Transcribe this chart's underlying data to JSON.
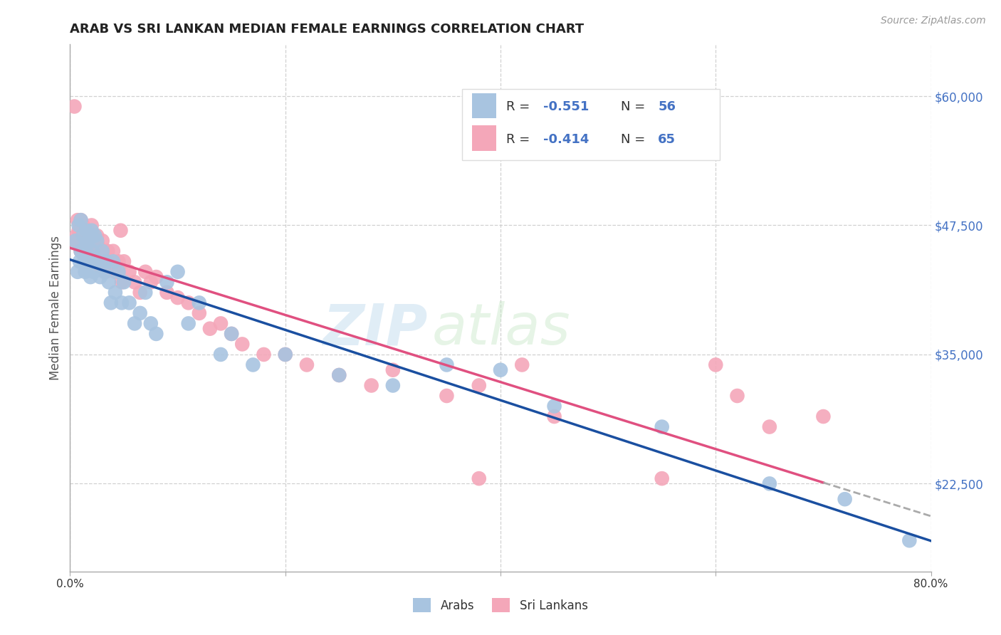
{
  "title": "ARAB VS SRI LANKAN MEDIAN FEMALE EARNINGS CORRELATION CHART",
  "source": "Source: ZipAtlas.com",
  "ylabel": "Median Female Earnings",
  "ytick_labels": [
    "$22,500",
    "$35,000",
    "$47,500",
    "$60,000"
  ],
  "ytick_values": [
    22500,
    35000,
    47500,
    60000
  ],
  "ymin": 14000,
  "ymax": 65000,
  "xmin": 0.0,
  "xmax": 0.8,
  "arab_color": "#a8c4e0",
  "srilankan_color": "#f4a7b9",
  "arab_line_color": "#1a4fa0",
  "srilankan_line_color": "#e05080",
  "watermark_zip": "ZIP",
  "watermark_atlas": "atlas",
  "background_color": "#ffffff",
  "grid_color": "#cccccc",
  "arab_R": -0.551,
  "arab_N": 56,
  "srilankan_R": -0.414,
  "srilankan_N": 65,
  "arab_points_x": [
    0.005,
    0.007,
    0.008,
    0.009,
    0.01,
    0.01,
    0.012,
    0.013,
    0.014,
    0.015,
    0.015,
    0.016,
    0.017,
    0.018,
    0.019,
    0.02,
    0.021,
    0.022,
    0.023,
    0.024,
    0.025,
    0.026,
    0.028,
    0.03,
    0.032,
    0.034,
    0.036,
    0.038,
    0.04,
    0.042,
    0.045,
    0.048,
    0.05,
    0.055,
    0.06,
    0.065,
    0.07,
    0.075,
    0.08,
    0.09,
    0.1,
    0.11,
    0.12,
    0.14,
    0.15,
    0.17,
    0.2,
    0.25,
    0.3,
    0.35,
    0.4,
    0.45,
    0.55,
    0.65,
    0.72,
    0.78
  ],
  "arab_points_y": [
    46000,
    43000,
    47500,
    44000,
    48000,
    45000,
    46500,
    44000,
    43000,
    47000,
    45500,
    43500,
    46000,
    44500,
    42500,
    47000,
    45000,
    43000,
    46500,
    44000,
    46000,
    44000,
    42500,
    45000,
    43000,
    44000,
    42000,
    40000,
    44000,
    41000,
    43000,
    40000,
    42000,
    40000,
    38000,
    39000,
    41000,
    38000,
    37000,
    42000,
    43000,
    38000,
    40000,
    35000,
    37000,
    34000,
    35000,
    33000,
    32000,
    34000,
    33500,
    30000,
    28000,
    22500,
    21000,
    17000
  ],
  "sri_points_x": [
    0.004,
    0.006,
    0.008,
    0.009,
    0.01,
    0.01,
    0.012,
    0.013,
    0.014,
    0.015,
    0.015,
    0.016,
    0.018,
    0.019,
    0.02,
    0.021,
    0.022,
    0.023,
    0.025,
    0.026,
    0.027,
    0.028,
    0.03,
    0.031,
    0.033,
    0.035,
    0.037,
    0.04,
    0.042,
    0.045,
    0.048,
    0.05,
    0.055,
    0.06,
    0.065,
    0.07,
    0.075,
    0.08,
    0.09,
    0.1,
    0.11,
    0.12,
    0.13,
    0.14,
    0.15,
    0.16,
    0.18,
    0.2,
    0.22,
    0.25,
    0.28,
    0.3,
    0.35,
    0.38,
    0.42,
    0.007,
    0.047,
    0.38,
    0.45,
    0.55,
    0.6,
    0.62,
    0.65,
    0.7,
    0.005
  ],
  "sri_points_y": [
    59000,
    46500,
    47000,
    46000,
    48000,
    45000,
    47500,
    46000,
    45000,
    47000,
    46000,
    44500,
    46500,
    45000,
    47500,
    46000,
    45000,
    44000,
    46500,
    45500,
    44500,
    43500,
    46000,
    44500,
    43000,
    45000,
    43500,
    45000,
    43000,
    44000,
    42000,
    44000,
    43000,
    42000,
    41000,
    43000,
    42000,
    42500,
    41000,
    40500,
    40000,
    39000,
    37500,
    38000,
    37000,
    36000,
    35000,
    35000,
    34000,
    33000,
    32000,
    33500,
    31000,
    23000,
    34000,
    48000,
    47000,
    32000,
    29000,
    23000,
    34000,
    31000,
    28000,
    29000,
    46000
  ]
}
